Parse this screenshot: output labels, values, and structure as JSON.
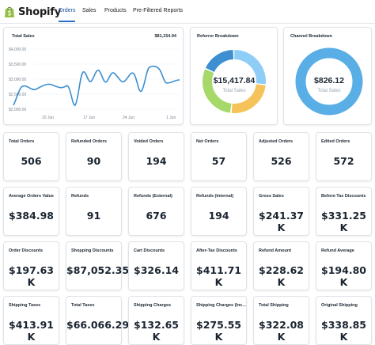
{
  "app": {
    "name": "Shopify",
    "brand_color": "#95bf47"
  },
  "nav": {
    "tabs": [
      {
        "label": "Orders",
        "active": true
      },
      {
        "label": "Sales",
        "active": false
      },
      {
        "label": "Products",
        "active": false
      },
      {
        "label": "Pre-Filtered Reports",
        "active": false
      }
    ]
  },
  "total_sales": {
    "label": "Total Sales",
    "amount": "$81,154.94",
    "y_ticks": [
      "$4,000.00",
      "$3,500.00",
      "$3,000.00",
      "$2,500.00",
      "$2,000.00"
    ],
    "x_ticks": [
      "10 Jun",
      "17 Jun",
      "24 Jun",
      "1 Jun"
    ],
    "line_color": "#3d8fd1"
  },
  "referrer": {
    "label": "Referrer Breakdown",
    "amount": "$15,417.84",
    "sub": "Total Sales",
    "segments": [
      {
        "value": 0.27,
        "color": "#8ecdf5"
      },
      {
        "value": 0.25,
        "color": "#f5c35a"
      },
      {
        "value": 0.3,
        "color": "#a6d96a"
      },
      {
        "value": 0.18,
        "color": "#3d8fd1"
      }
    ]
  },
  "channel": {
    "label": "Channel Breakdown",
    "amount": "$826.12",
    "sub": "Total Sales",
    "color": "#5aaee6"
  },
  "metrics": [
    [
      {
        "label": "Total Orders",
        "value": "506"
      },
      {
        "label": "Refunded Orders",
        "value": "90"
      },
      {
        "label": "Voided Orders",
        "value": "194"
      },
      {
        "label": "Net Orders",
        "value": "57"
      },
      {
        "label": "Adjusted Orders",
        "value": "526"
      },
      {
        "label": "Edited Orders",
        "value": "572"
      }
    ],
    [
      {
        "label": "Average Orders Value",
        "value": "$384.98"
      },
      {
        "label": "Refunds",
        "value": "91"
      },
      {
        "label": "Refunds (External)",
        "value": "676"
      },
      {
        "label": "Refunds (Internal)",
        "value": "194"
      },
      {
        "label": "Gross Sales",
        "value": "$241.37 K"
      },
      {
        "label": "Before-Tax Discounts",
        "value": "$331.25 K"
      }
    ],
    [
      {
        "label": "Order Discounts",
        "value": "$197.63 K"
      },
      {
        "label": "Shopping Discounts",
        "value": "$87,052.35"
      },
      {
        "label": "Cart Discounts",
        "value": "$326.14"
      },
      {
        "label": "After-Tax Discounts",
        "value": "$411.71 K"
      },
      {
        "label": "Refund Amount",
        "value": "$228.62 K"
      },
      {
        "label": "Refund Average",
        "value": "$194.80 K"
      }
    ],
    [
      {
        "label": "Shipping Taxes",
        "value": "$413.91 K"
      },
      {
        "label": "Total Taxes",
        "value": "$66.066.29"
      },
      {
        "label": "Shipping Charges",
        "value": "$132.65 K"
      },
      {
        "label": "Shipping Charges (Inc...",
        "value": "$275.55 K"
      },
      {
        "label": "Total Shipping",
        "value": "$322.08 K"
      },
      {
        "label": "Original Shipping",
        "value": "$338.85 K"
      }
    ]
  ]
}
